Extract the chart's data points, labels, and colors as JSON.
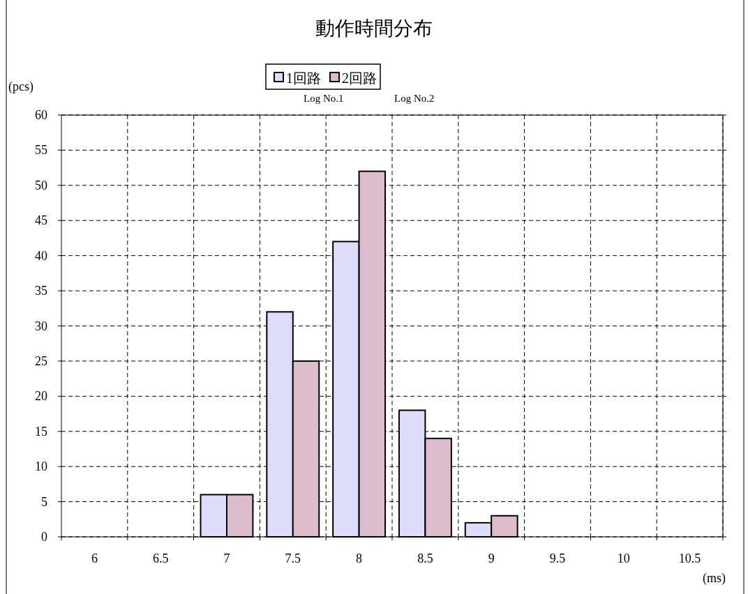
{
  "chart_data": {
    "type": "bar",
    "title": "動作時間分布",
    "xlabel": "(ms)",
    "ylabel": "(pcs)",
    "categories": [
      "6",
      "6.5",
      "7",
      "7.5",
      "8",
      "8.5",
      "9",
      "9.5",
      "10",
      "10.5"
    ],
    "series": [
      {
        "name": "1回路",
        "color": "#dcdcfa",
        "values": [
          0,
          0,
          6,
          32,
          42,
          18,
          2,
          0,
          0,
          0
        ]
      },
      {
        "name": "2回路",
        "color": "#dcbccc",
        "values": [
          0,
          0,
          6,
          25,
          52,
          14,
          3,
          0,
          0,
          0
        ]
      }
    ],
    "annotations": [
      "Log No.1",
      "Log No.2"
    ],
    "ylim": [
      0,
      60
    ],
    "yticks": [
      0,
      5,
      10,
      15,
      20,
      25,
      30,
      35,
      40,
      45,
      50,
      55,
      60
    ],
    "grid": true,
    "legend": "top"
  }
}
